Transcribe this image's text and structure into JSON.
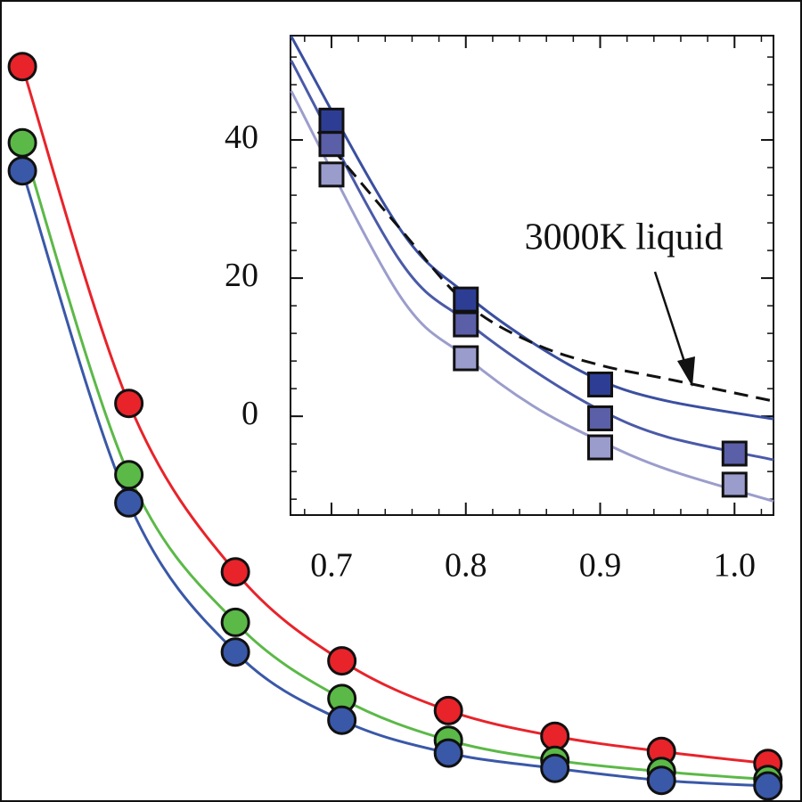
{
  "chart_data": [
    {
      "type": "scatter",
      "line": true,
      "x": [
        1,
        2,
        3,
        4,
        5,
        6,
        7,
        8
      ],
      "xlim": [
        0.79,
        8.32
      ],
      "ylim": [
        0,
        100
      ],
      "series": [
        {
          "color": "#e8232a",
          "values": [
            91.7,
            49.7,
            28.7,
            17.6,
            11.4,
            8.2,
            6.3,
            4.8
          ]
        },
        {
          "color": "#5bb947",
          "values": [
            82.2,
            40.8,
            22.4,
            12.9,
            7.7,
            5.2,
            3.8,
            2.8
          ]
        },
        {
          "color": "#3a58a8",
          "values": [
            78.7,
            37.3,
            18.7,
            10.2,
            6.1,
            4.2,
            2.7,
            2.0
          ]
        }
      ]
    },
    {
      "type": "scatter",
      "marker": "square",
      "x": [
        0.7,
        0.8,
        0.9,
        1.0
      ],
      "xlim": [
        0.6695,
        1.029
      ],
      "ylim": [
        -14.3,
        55.1
      ],
      "xticks": [
        0.7,
        0.8,
        0.9,
        {
          "value": 1.0,
          "label": "1.0"
        }
      ],
      "yticks": [
        0,
        20,
        40
      ],
      "series": [
        {
          "color": "#2e3d94",
          "values": [
            42.8,
            16.9,
            4.6,
            null
          ]
        },
        {
          "color": "#5a5fa8",
          "values": [
            39.4,
            13.3,
            -0.3,
            -5.4
          ]
        },
        {
          "color": "#9a9ccc",
          "values": [
            35.0,
            8.4,
            -4.5,
            -9.9
          ]
        }
      ],
      "curves": [
        {
          "color": "#3a4fa0",
          "x": [
            0.67,
            0.75,
            0.8,
            0.85,
            0.9,
            0.95,
            1.029
          ],
          "values": [
            55.0,
            27.4,
            17.7,
            10.6,
            5.2,
            2.2,
            -0.4
          ]
        },
        {
          "color": "#4a5aa8",
          "x": [
            0.67,
            0.75,
            0.8,
            0.85,
            0.9,
            0.95,
            1.029
          ],
          "values": [
            51.5,
            22.8,
            13.8,
            6.7,
            0.9,
            -3.0,
            -6.3
          ]
        },
        {
          "color": "#9b9dcc",
          "x": [
            0.67,
            0.75,
            0.8,
            0.85,
            0.9,
            0.95,
            1.029
          ],
          "values": [
            47.1,
            17.7,
            8.6,
            1.5,
            -3.6,
            -7.7,
            -12.3
          ]
        },
        {
          "color": "#111111",
          "dashed": true,
          "x": [
            0.69,
            0.75,
            0.8,
            0.85,
            0.9,
            0.95,
            1.029
          ],
          "values": [
            41.2,
            27.4,
            16.4,
            10.6,
            7.4,
            5.4,
            2.2
          ]
        }
      ],
      "annotation": "3000K liquid"
    }
  ]
}
